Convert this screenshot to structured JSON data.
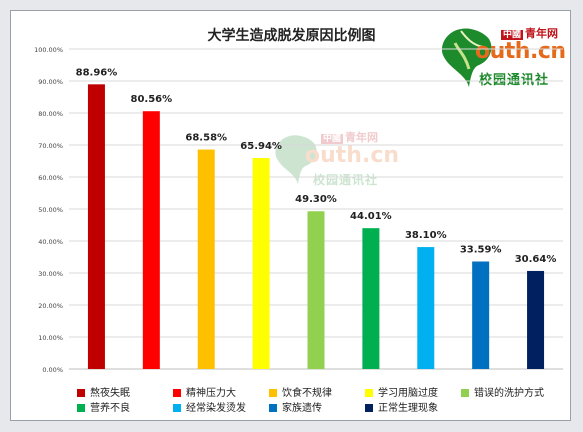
{
  "chart_data": {
    "type": "bar",
    "title": "大学生造成脱发原因比例图",
    "categories": [
      "熬夜失眠",
      "精神压力大",
      "饮食不规律",
      "学习用脑过度",
      "错误的洗护方式",
      "营养不良",
      "经常染发烫发",
      "家族遗传",
      "正常生理现象"
    ],
    "values": [
      88.96,
      80.56,
      68.58,
      65.94,
      49.3,
      44.01,
      38.1,
      33.59,
      30.64
    ],
    "value_labels": [
      "88.96%",
      "80.56%",
      "68.58%",
      "65.94%",
      "49.30%",
      "44.01%",
      "38.10%",
      "33.59%",
      "30.64%"
    ],
    "colors": [
      "#c00000",
      "#ff0000",
      "#ffc000",
      "#ffff00",
      "#92d050",
      "#00b050",
      "#00b0f0",
      "#0070c0",
      "#002060"
    ],
    "ylim": [
      0,
      100
    ],
    "yticks": [
      "0.00%",
      "10.00%",
      "20.00%",
      "30.00%",
      "40.00%",
      "50.00%",
      "60.00%",
      "70.00%",
      "80.00%",
      "90.00%",
      "100.00%"
    ],
    "grid": true,
    "legend_position": "bottom",
    "xlabel": "",
    "ylabel": ""
  },
  "logo": {
    "badge": "中國",
    "top": "青年网",
    "main": "outh.cn",
    "sub": "校园通讯社"
  }
}
